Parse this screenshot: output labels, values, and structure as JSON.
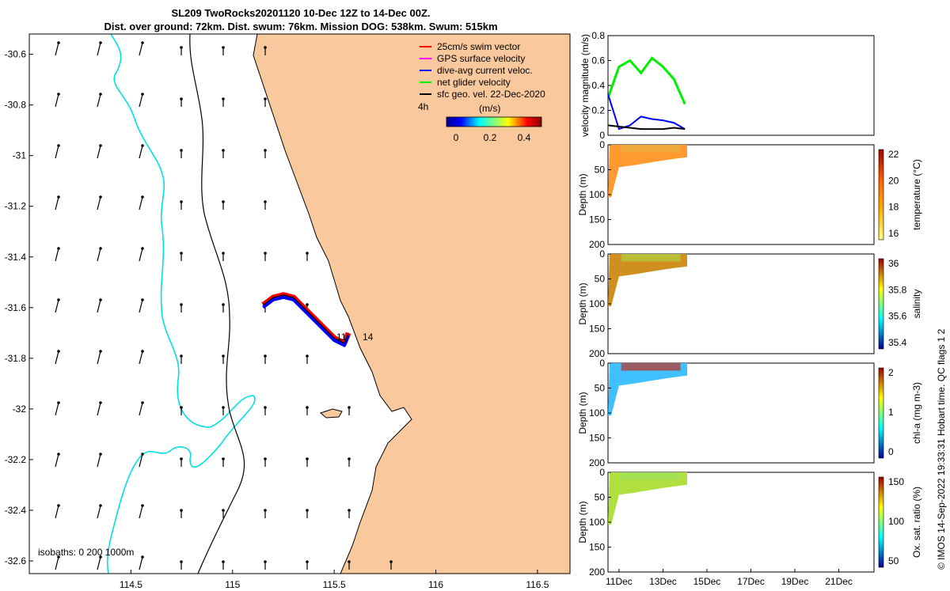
{
  "title": {
    "line1": "SL209 TwoRocks20201120 10-Dec 12Z to 14-Dec 00Z.",
    "line2": "Dist. over ground: 72km. Dist. swum: 76km. Mission DOG: 538km. Swum: 515km"
  },
  "footer_text": "© IMOS 14-Sep-2022 19:33:31 Hobart time. QC flags 1  2",
  "colors": {
    "land": "#f9c99d",
    "track_red": "#ff0000",
    "track_blue": "#0000ff",
    "isobath_cyan": "#00e0e0",
    "net_green": "#00ee00"
  },
  "chart_data": [
    {
      "type": "scatter",
      "name": "map",
      "xlim": [
        114.0,
        116.66
      ],
      "ylim": [
        -32.65,
        -30.52
      ],
      "xticks": [
        114.5,
        115,
        115.5,
        116,
        116.5
      ],
      "xtick_labels": [
        "114.5",
        "115",
        "115.5",
        "116",
        "116.5"
      ],
      "yticks": [
        -30.6,
        -30.8,
        -31,
        -31.2,
        -31.4,
        -31.6,
        -31.8,
        -32,
        -32.2,
        -32.4,
        -32.6
      ],
      "ytick_labels": [
        "-30.6",
        "-30.8",
        "-31",
        "-31.2",
        "-31.4",
        "-31.6",
        "-31.8",
        "-32",
        "-32.2",
        "-32.4",
        "-32.6"
      ],
      "legend": [
        "25cm/s swim vector",
        "GPS surface velocity",
        "dive-avg current veloc.",
        "net glider velocity",
        "sfc geo. vel. 22-Dec-2020"
      ],
      "legend_colors": [
        "#ff0000",
        "#ff00ff",
        "#0000ff",
        "#00ee00",
        "#000000"
      ],
      "colorbar": {
        "label": "(m/s)",
        "ticks": [
          "0",
          "0.2",
          "0.4"
        ],
        "corner_label": "4h"
      },
      "isobaths_label": "isobaths: 0   200  1000m",
      "track": [
        [
          115.15,
          -31.59
        ],
        [
          115.2,
          -31.56
        ],
        [
          115.25,
          -31.55
        ],
        [
          115.3,
          -31.56
        ],
        [
          115.35,
          -31.6
        ],
        [
          115.4,
          -31.64
        ],
        [
          115.45,
          -31.68
        ],
        [
          115.5,
          -31.72
        ],
        [
          115.55,
          -31.74
        ],
        [
          115.57,
          -31.7
        ]
      ],
      "track_labels": [
        "11",
        "14"
      ],
      "grid": false
    },
    {
      "type": "line",
      "name": "velocity",
      "ylabel": "velocity magnitude (m/s)",
      "ylim": [
        0,
        0.8
      ],
      "yticks": [
        "0",
        "0.2",
        "0.4",
        "0.6",
        "0.8"
      ],
      "x_days": [
        10.5,
        11,
        11.5,
        12,
        12.5,
        13,
        13.5,
        14
      ],
      "series": [
        {
          "name": "net glider velocity",
          "color": "#00ee00",
          "values": [
            0.3,
            0.55,
            0.6,
            0.5,
            0.62,
            0.55,
            0.45,
            0.25
          ]
        },
        {
          "name": "dive-avg current veloc.",
          "color": "#0000ff",
          "values": [
            0.33,
            0.05,
            0.08,
            0.15,
            0.13,
            0.12,
            0.1,
            0.05
          ]
        },
        {
          "name": "sfc geo. vel. 22-Dec-2020",
          "color": "#000000",
          "values": [
            0.08,
            0.07,
            0.06,
            0.05,
            0.05,
            0.05,
            0.06,
            0.05
          ]
        }
      ]
    },
    {
      "type": "heatmap",
      "name": "temperature",
      "ylabel": "Depth (m)",
      "ylim": [
        200,
        0
      ],
      "yticks": [
        "0",
        "50",
        "100",
        "150",
        "200"
      ],
      "colorbar_label": "temperature (°C)",
      "colorbar_ticks": [
        "16",
        "18",
        "20",
        "22"
      ]
    },
    {
      "type": "heatmap",
      "name": "salinity",
      "ylabel": "Depth (m)",
      "ylim": [
        200,
        0
      ],
      "yticks": [
        "0",
        "50",
        "100",
        "150",
        "200"
      ],
      "colorbar_label": "salinity",
      "colorbar_ticks": [
        "35.4",
        "35.6",
        "35.8",
        "36"
      ]
    },
    {
      "type": "heatmap",
      "name": "chl-a",
      "ylabel": "Depth (m)",
      "ylim": [
        200,
        0
      ],
      "yticks": [
        "0",
        "50",
        "100",
        "150",
        "200"
      ],
      "colorbar_label": "chl-a (mg m-3)",
      "colorbar_ticks": [
        "0",
        "1",
        "2"
      ]
    },
    {
      "type": "heatmap",
      "name": "oxygen",
      "ylabel": "Depth (m)",
      "ylim": [
        200,
        0
      ],
      "yticks": [
        "0",
        "50",
        "100",
        "150",
        "200"
      ],
      "colorbar_label": "Ox. sat. ratio (%)",
      "colorbar_ticks": [
        "50",
        "100",
        "150"
      ],
      "xtick_labels": [
        "11Dec",
        "13Dec",
        "15Dec",
        "17Dec",
        "19Dec",
        "21Dec"
      ]
    }
  ]
}
